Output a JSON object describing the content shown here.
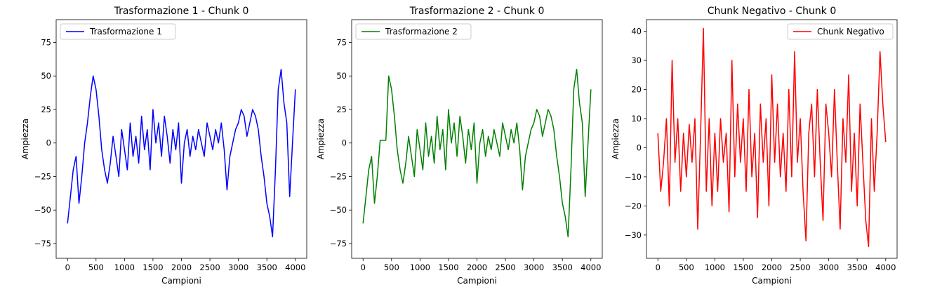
{
  "chart_data": [
    {
      "type": "line",
      "title": "Trasformazione 1 - Chunk 0",
      "xlabel": "Campioni",
      "ylabel": "Ampiezza",
      "xlim": [
        -200,
        4200
      ],
      "ylim": [
        -86,
        92
      ],
      "xticks": [
        0,
        500,
        1000,
        1500,
        2000,
        2500,
        3000,
        3500,
        4000
      ],
      "xtick_labels": [
        "0",
        "500",
        "1000",
        "1500",
        "2000",
        "2500",
        "3000",
        "3500",
        "4000"
      ],
      "yticks": [
        -75,
        -50,
        -25,
        0,
        25,
        50,
        75
      ],
      "ytick_labels": [
        "−75",
        "−50",
        "−25",
        "0",
        "25",
        "50",
        "75"
      ],
      "legend_position": "upper-left",
      "grid": false,
      "series": [
        {
          "name": "Trasformazione 1",
          "color": "#0000ff",
          "x": [
            0,
            50,
            100,
            150,
            200,
            250,
            300,
            350,
            400,
            450,
            500,
            550,
            600,
            650,
            700,
            750,
            800,
            850,
            900,
            950,
            1000,
            1050,
            1100,
            1150,
            1200,
            1250,
            1300,
            1350,
            1400,
            1450,
            1500,
            1550,
            1600,
            1650,
            1700,
            1750,
            1800,
            1850,
            1900,
            1950,
            2000,
            2050,
            2100,
            2150,
            2200,
            2250,
            2300,
            2350,
            2400,
            2450,
            2500,
            2550,
            2600,
            2650,
            2700,
            2750,
            2800,
            2850,
            2900,
            2950,
            3000,
            3050,
            3100,
            3150,
            3200,
            3250,
            3300,
            3350,
            3400,
            3450,
            3500,
            3550,
            3600,
            3650,
            3700,
            3750,
            3800,
            3850,
            3900,
            3950,
            4000
          ],
          "y": [
            -60,
            -40,
            -20,
            -10,
            -45,
            -25,
            0,
            15,
            35,
            50,
            40,
            20,
            -5,
            -20,
            -30,
            -15,
            5,
            -10,
            -25,
            10,
            -5,
            -20,
            15,
            -10,
            5,
            -15,
            20,
            -5,
            10,
            -20,
            25,
            0,
            15,
            -10,
            20,
            5,
            -15,
            10,
            -5,
            15,
            -30,
            0,
            10,
            -10,
            5,
            -5,
            10,
            0,
            -10,
            15,
            5,
            -5,
            10,
            0,
            15,
            -5,
            -35,
            -10,
            0,
            10,
            15,
            25,
            20,
            5,
            15,
            25,
            20,
            10,
            -10,
            -25,
            -45,
            -55,
            -70,
            -20,
            40,
            55,
            30,
            15,
            -40,
            0,
            40
          ]
        }
      ]
    },
    {
      "type": "line",
      "title": "Trasformazione 2 - Chunk 0",
      "xlabel": "Campioni",
      "ylabel": "Ampiezza",
      "xlim": [
        -200,
        4200
      ],
      "ylim": [
        -86,
        92
      ],
      "xticks": [
        0,
        500,
        1000,
        1500,
        2000,
        2500,
        3000,
        3500,
        4000
      ],
      "xtick_labels": [
        "0",
        "500",
        "1000",
        "1500",
        "2000",
        "2500",
        "3000",
        "3500",
        "4000"
      ],
      "yticks": [
        -75,
        -50,
        -25,
        0,
        25,
        50,
        75
      ],
      "ytick_labels": [
        "−75",
        "−50",
        "−25",
        "0",
        "25",
        "50",
        "75"
      ],
      "legend_position": "upper-left",
      "grid": false,
      "series": [
        {
          "name": "Trasformazione 2",
          "color": "#008000",
          "x": [
            0,
            50,
            100,
            150,
            200,
            250,
            300,
            350,
            400,
            450,
            500,
            550,
            600,
            650,
            700,
            750,
            800,
            850,
            900,
            950,
            1000,
            1050,
            1100,
            1150,
            1200,
            1250,
            1300,
            1350,
            1400,
            1450,
            1500,
            1550,
            1600,
            1650,
            1700,
            1750,
            1800,
            1850,
            1900,
            1950,
            2000,
            2050,
            2100,
            2150,
            2200,
            2250,
            2300,
            2350,
            2400,
            2450,
            2500,
            2550,
            2600,
            2650,
            2700,
            2750,
            2800,
            2850,
            2900,
            2950,
            3000,
            3050,
            3100,
            3150,
            3200,
            3250,
            3300,
            3350,
            3400,
            3450,
            3500,
            3550,
            3600,
            3650,
            3700,
            3750,
            3800,
            3850,
            3900,
            3950,
            4000
          ],
          "y": [
            -60,
            -40,
            -20,
            -10,
            -45,
            -25,
            2,
            2,
            2,
            50,
            40,
            20,
            -5,
            -20,
            -30,
            -15,
            5,
            -10,
            -25,
            10,
            -5,
            -20,
            15,
            -10,
            5,
            -15,
            20,
            -5,
            10,
            -20,
            25,
            0,
            15,
            -10,
            20,
            5,
            -15,
            10,
            -5,
            15,
            -30,
            0,
            10,
            -10,
            5,
            -5,
            10,
            0,
            -10,
            15,
            5,
            -5,
            10,
            0,
            15,
            -5,
            -35,
            -10,
            0,
            10,
            15,
            25,
            20,
            5,
            15,
            25,
            20,
            10,
            -10,
            -25,
            -45,
            -55,
            -70,
            -20,
            40,
            55,
            30,
            15,
            -40,
            0,
            40
          ]
        }
      ]
    },
    {
      "type": "line",
      "title": "Chunk Negativo - Chunk 0",
      "xlabel": "Campioni",
      "ylabel": "Ampiezza",
      "xlim": [
        -200,
        4200
      ],
      "ylim": [
        -38,
        44
      ],
      "xticks": [
        0,
        500,
        1000,
        1500,
        2000,
        2500,
        3000,
        3500,
        4000
      ],
      "xtick_labels": [
        "0",
        "500",
        "1000",
        "1500",
        "2000",
        "2500",
        "3000",
        "3500",
        "4000"
      ],
      "yticks": [
        -30,
        -20,
        -10,
        0,
        10,
        20,
        30,
        40
      ],
      "ytick_labels": [
        "−30",
        "−20",
        "−10",
        "0",
        "10",
        "20",
        "30",
        "40"
      ],
      "legend_position": "upper-right",
      "grid": false,
      "series": [
        {
          "name": "Chunk Negativo",
          "color": "#ff0000",
          "x": [
            0,
            50,
            100,
            150,
            200,
            250,
            300,
            350,
            400,
            450,
            500,
            550,
            600,
            650,
            700,
            750,
            800,
            850,
            900,
            950,
            1000,
            1050,
            1100,
            1150,
            1200,
            1250,
            1300,
            1350,
            1400,
            1450,
            1500,
            1550,
            1600,
            1650,
            1700,
            1750,
            1800,
            1850,
            1900,
            1950,
            2000,
            2050,
            2100,
            2150,
            2200,
            2250,
            2300,
            2350,
            2400,
            2450,
            2500,
            2550,
            2600,
            2650,
            2700,
            2750,
            2800,
            2850,
            2900,
            2950,
            3000,
            3050,
            3100,
            3150,
            3200,
            3250,
            3300,
            3350,
            3400,
            3450,
            3500,
            3550,
            3600,
            3650,
            3700,
            3750,
            3800,
            3850,
            3900,
            3950,
            4000
          ],
          "y": [
            5,
            -15,
            -5,
            10,
            -20,
            30,
            -5,
            10,
            -15,
            5,
            -10,
            8,
            -5,
            10,
            -28,
            5,
            41,
            -15,
            10,
            -20,
            5,
            -15,
            10,
            -5,
            5,
            -22,
            30,
            -10,
            15,
            -5,
            10,
            -15,
            20,
            -10,
            5,
            -24,
            15,
            -5,
            10,
            -20,
            25,
            -5,
            15,
            -10,
            5,
            -15,
            20,
            -10,
            33,
            -5,
            10,
            -15,
            -32,
            5,
            15,
            -10,
            20,
            -5,
            -25,
            15,
            5,
            -10,
            20,
            -5,
            -28,
            10,
            -5,
            25,
            -15,
            5,
            -20,
            15,
            -5,
            -25,
            -34,
            10,
            -15,
            5,
            33,
            15,
            2
          ]
        }
      ]
    }
  ]
}
